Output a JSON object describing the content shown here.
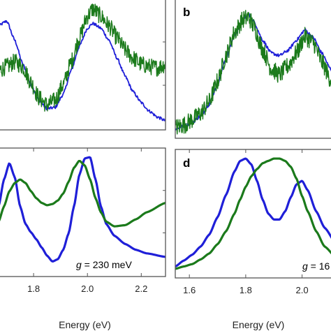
{
  "colors": {
    "blue": "#1f1fd8",
    "green": "#1b7a1b",
    "frame": "#555555"
  },
  "chart_data": [
    {
      "type": "line",
      "panel": "a",
      "panel_label": "",
      "x_range_ev": [
        1.67,
        2.29
      ],
      "series": [
        {
          "color": "blue",
          "style": "noisy-smooth",
          "x": [
            1.67,
            1.7,
            1.73,
            1.76,
            1.79,
            1.82,
            1.85,
            1.88,
            1.91,
            1.94,
            1.97,
            2.0,
            2.02,
            2.05,
            2.08,
            2.11,
            2.14,
            2.17,
            2.2,
            2.23,
            2.26,
            2.29
          ],
          "y": [
            0.82,
            0.86,
            0.7,
            0.5,
            0.33,
            0.2,
            0.13,
            0.14,
            0.25,
            0.45,
            0.65,
            0.8,
            0.84,
            0.8,
            0.7,
            0.55,
            0.4,
            0.27,
            0.18,
            0.11,
            0.06,
            0.03
          ]
        },
        {
          "color": "green",
          "style": "noisy",
          "x": [
            1.67,
            1.7,
            1.73,
            1.76,
            1.79,
            1.82,
            1.85,
            1.88,
            1.91,
            1.94,
            1.97,
            2.0,
            2.02,
            2.05,
            2.08,
            2.11,
            2.14,
            2.17,
            2.2,
            2.23,
            2.26,
            2.29
          ],
          "y": [
            0.45,
            0.48,
            0.52,
            0.48,
            0.35,
            0.22,
            0.16,
            0.2,
            0.33,
            0.52,
            0.72,
            0.9,
            0.96,
            0.9,
            0.82,
            0.72,
            0.62,
            0.55,
            0.5,
            0.48,
            0.47,
            0.5
          ]
        }
      ]
    },
    {
      "type": "line",
      "panel": "b",
      "panel_label": "b",
      "x_range_ev": [
        1.55,
        2.12
      ],
      "series": [
        {
          "color": "blue",
          "style": "noisy-smooth",
          "x": [
            1.55,
            1.58,
            1.61,
            1.64,
            1.67,
            1.7,
            1.73,
            1.76,
            1.79,
            1.81,
            1.83,
            1.86,
            1.89,
            1.92,
            1.95,
            1.98,
            2.01,
            2.04,
            2.07,
            2.1,
            2.12
          ],
          "y": [
            0.03,
            0.05,
            0.08,
            0.13,
            0.22,
            0.38,
            0.58,
            0.76,
            0.88,
            0.92,
            0.86,
            0.72,
            0.62,
            0.6,
            0.64,
            0.72,
            0.8,
            0.74,
            0.62,
            0.5,
            0.43
          ]
        },
        {
          "color": "green",
          "style": "noisy",
          "x": [
            1.55,
            1.58,
            1.61,
            1.64,
            1.67,
            1.7,
            1.73,
            1.76,
            1.79,
            1.81,
            1.83,
            1.86,
            1.89,
            1.92,
            1.95,
            1.98,
            2.01,
            2.04,
            2.07,
            2.1,
            2.12
          ],
          "y": [
            0.04,
            0.06,
            0.1,
            0.15,
            0.24,
            0.4,
            0.6,
            0.78,
            0.88,
            0.9,
            0.82,
            0.65,
            0.5,
            0.45,
            0.52,
            0.62,
            0.75,
            0.7,
            0.55,
            0.42,
            0.35
          ]
        }
      ]
    },
    {
      "type": "line",
      "panel": "c",
      "panel_label": "",
      "xlabel": "Energy (eV)",
      "x_range_ev": [
        1.67,
        2.29
      ],
      "x_ticks": [
        "1.8",
        "2.0",
        "2.2"
      ],
      "annotation": {
        "var": "g",
        "rest": " = 230 meV"
      },
      "series": [
        {
          "color": "blue",
          "x": [
            1.67,
            1.69,
            1.71,
            1.73,
            1.75,
            1.77,
            1.79,
            1.81,
            1.83,
            1.85,
            1.87,
            1.89,
            1.91,
            1.93,
            1.95,
            1.97,
            1.99,
            2.01,
            2.03,
            2.05,
            2.07,
            2.1,
            2.14,
            2.18,
            2.22,
            2.29
          ],
          "y": [
            0.55,
            0.78,
            0.92,
            0.8,
            0.55,
            0.4,
            0.33,
            0.27,
            0.2,
            0.13,
            0.08,
            0.1,
            0.18,
            0.32,
            0.55,
            0.82,
            0.96,
            0.97,
            0.78,
            0.55,
            0.4,
            0.3,
            0.23,
            0.18,
            0.15,
            0.12
          ]
        },
        {
          "color": "green",
          "x": [
            1.67,
            1.69,
            1.71,
            1.73,
            1.75,
            1.77,
            1.79,
            1.81,
            1.83,
            1.85,
            1.87,
            1.89,
            1.91,
            1.93,
            1.95,
            1.97,
            1.99,
            2.01,
            2.03,
            2.05,
            2.07,
            2.1,
            2.14,
            2.18,
            2.22,
            2.29
          ],
          "y": [
            0.42,
            0.55,
            0.68,
            0.75,
            0.78,
            0.75,
            0.68,
            0.62,
            0.58,
            0.56,
            0.57,
            0.6,
            0.66,
            0.76,
            0.88,
            0.94,
            0.9,
            0.78,
            0.62,
            0.5,
            0.42,
            0.38,
            0.39,
            0.44,
            0.5,
            0.58
          ]
        }
      ]
    },
    {
      "type": "line",
      "panel": "d",
      "panel_label": "d",
      "xlabel": "Energy (eV)",
      "x_range_ev": [
        1.55,
        2.12
      ],
      "x_ticks": [
        "1.6",
        "1.8",
        "2.0"
      ],
      "annotation": {
        "var": "g",
        "rest": " = 16"
      },
      "series": [
        {
          "color": "blue",
          "x": [
            1.55,
            1.58,
            1.61,
            1.64,
            1.67,
            1.7,
            1.73,
            1.76,
            1.78,
            1.8,
            1.82,
            1.84,
            1.86,
            1.88,
            1.9,
            1.92,
            1.94,
            1.96,
            1.98,
            2.0,
            2.02,
            2.05,
            2.08,
            2.12
          ],
          "y": [
            0.05,
            0.1,
            0.15,
            0.22,
            0.32,
            0.47,
            0.66,
            0.86,
            0.95,
            0.97,
            0.92,
            0.78,
            0.62,
            0.5,
            0.45,
            0.45,
            0.52,
            0.64,
            0.75,
            0.78,
            0.7,
            0.52,
            0.38,
            0.25
          ]
        },
        {
          "color": "green",
          "x": [
            1.55,
            1.58,
            1.61,
            1.64,
            1.67,
            1.7,
            1.73,
            1.76,
            1.78,
            1.8,
            1.82,
            1.84,
            1.86,
            1.88,
            1.9,
            1.92,
            1.94,
            1.96,
            1.98,
            2.0,
            2.02,
            2.05,
            2.08,
            2.12
          ],
          "y": [
            0.03,
            0.05,
            0.07,
            0.11,
            0.16,
            0.24,
            0.35,
            0.5,
            0.62,
            0.73,
            0.82,
            0.88,
            0.93,
            0.95,
            0.97,
            0.97,
            0.95,
            0.9,
            0.8,
            0.65,
            0.52,
            0.35,
            0.22,
            0.13
          ]
        }
      ]
    }
  ]
}
